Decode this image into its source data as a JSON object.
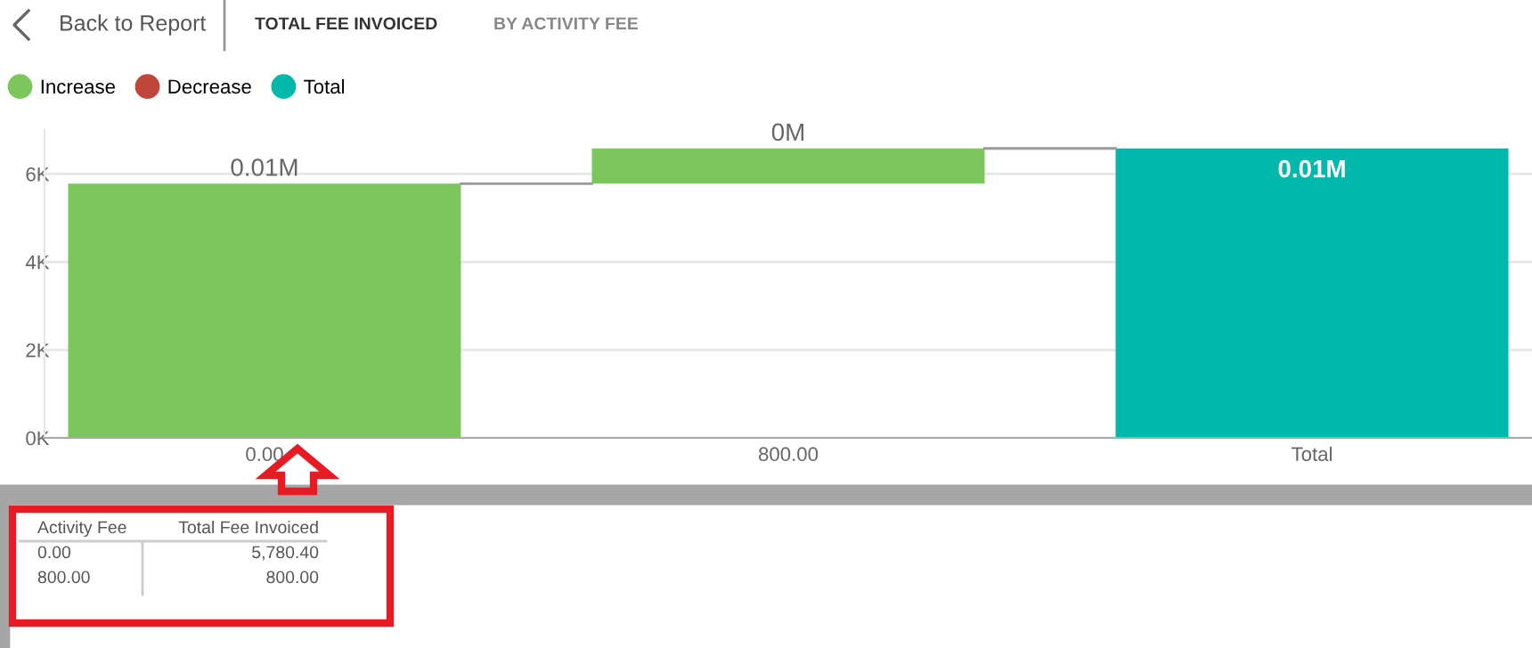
{
  "chart_data": {
    "type": "bar",
    "categories": [
      "0.00",
      "800.00",
      "Total"
    ],
    "series": [
      {
        "name": "Increase",
        "color": "#7dc65c",
        "values": [
          5780.4,
          800,
          null
        ],
        "base": [
          0,
          5780.4,
          null
        ],
        "value_labels": [
          "0.01M",
          "0M",
          null
        ]
      },
      {
        "name": "Decrease",
        "color": "#c0463a",
        "values": [
          null,
          null,
          null
        ]
      },
      {
        "name": "Total",
        "color": "#01b8aa",
        "values": [
          null,
          null,
          6580.4
        ],
        "base": [
          null,
          null,
          0
        ],
        "value_labels": [
          null,
          null,
          "0.01M"
        ]
      }
    ],
    "ylim": [
      0,
      7000
    ],
    "yticks": [
      {
        "value": 0,
        "label": "0K"
      },
      {
        "value": 2000,
        "label": "2K"
      },
      {
        "value": 4000,
        "label": "4K"
      },
      {
        "value": 6000,
        "label": "6K"
      }
    ],
    "grid": "y",
    "legend": "top left",
    "annotations": [
      "Back to Report",
      "TOTAL FEE INVOICED",
      "BY ACTIVITY FEE",
      "Activity Fee",
      "Total Fee Invoiced",
      "0.00",
      "5,780.40",
      "800.00",
      "800.00"
    ]
  }
}
